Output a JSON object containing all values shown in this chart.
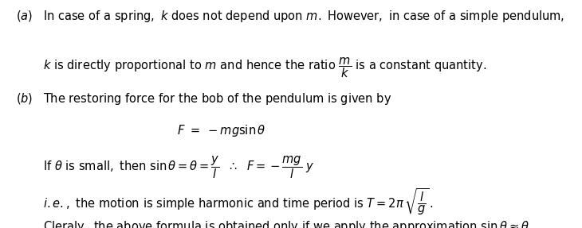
{
  "background_color": "#ffffff",
  "figsize": [
    7.3,
    2.87
  ],
  "dpi": 100,
  "fs": 10.5
}
